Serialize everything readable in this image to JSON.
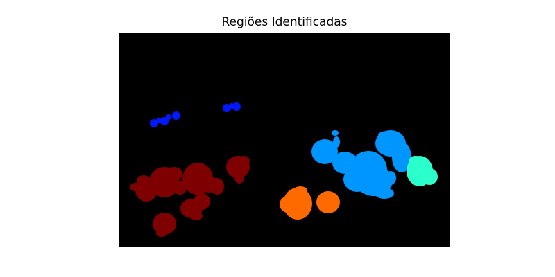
{
  "figure": {
    "title": "Regiões Identificadas"
  },
  "image": {
    "background_color": "#000000",
    "colormap": "jet",
    "regions": [
      {
        "id": "blue",
        "color": "#0018ff"
      },
      {
        "id": "dark-red",
        "color": "#7f0000"
      },
      {
        "id": "orange",
        "color": "#ff6a00"
      },
      {
        "id": "light-blue",
        "color": "#0096ff"
      },
      {
        "id": "aquamarine",
        "color": "#2bffcb"
      }
    ]
  }
}
